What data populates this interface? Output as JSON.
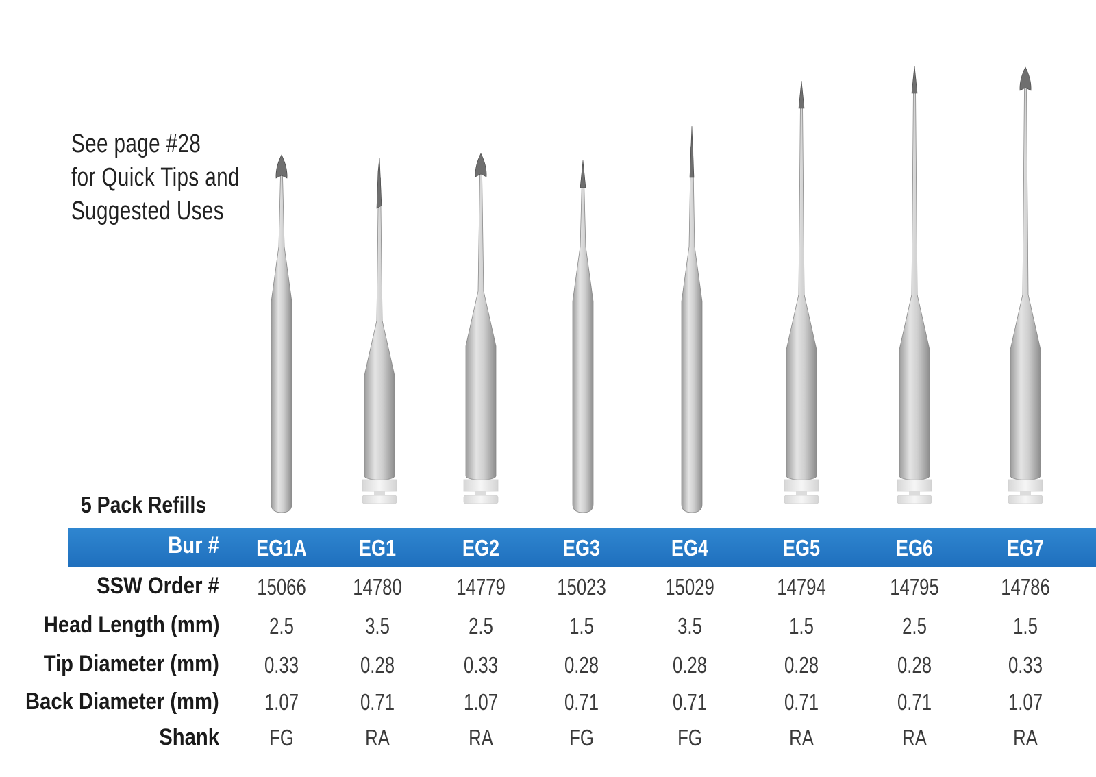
{
  "note": {
    "lines": [
      "See page #28",
      "for Quick Tips and",
      "Suggested Uses"
    ]
  },
  "pack_label": "5 Pack Refills",
  "table": {
    "row_labels": {
      "bur": "Bur #",
      "order": "SSW Order #",
      "head": "Head Length (mm)",
      "tip": "Tip Diameter (mm)",
      "back": "Back Diameter (mm)",
      "shank": "Shank"
    },
    "columns": [
      {
        "bur": "EG1A",
        "order": "15066",
        "head": "2.5",
        "tip": "0.33",
        "back": "1.07",
        "shank": "FG"
      },
      {
        "bur": "EG1",
        "order": "14780",
        "head": "3.5",
        "tip": "0.28",
        "back": "0.71",
        "shank": "RA"
      },
      {
        "bur": "EG2",
        "order": "14779",
        "head": "2.5",
        "tip": "0.33",
        "back": "1.07",
        "shank": "RA"
      },
      {
        "bur": "EG3",
        "order": "15023",
        "head": "1.5",
        "tip": "0.28",
        "back": "0.71",
        "shank": "FG"
      },
      {
        "bur": "EG4",
        "order": "15029",
        "head": "3.5",
        "tip": "0.28",
        "back": "0.71",
        "shank": "FG"
      },
      {
        "bur": "EG5",
        "order": "14794",
        "head": "1.5",
        "tip": "0.28",
        "back": "0.71",
        "shank": "RA"
      },
      {
        "bur": "EG6",
        "order": "14795",
        "head": "2.5",
        "tip": "0.28",
        "back": "0.71",
        "shank": "RA"
      },
      {
        "bur": "EG7",
        "order": "14786",
        "head": "1.5",
        "tip": "0.33",
        "back": "1.07",
        "shank": "RA"
      }
    ]
  },
  "colors": {
    "band": "#2a7fca",
    "band_text": "#ffffff",
    "metal": "#c4c4c4",
    "latch": "#ececec"
  }
}
